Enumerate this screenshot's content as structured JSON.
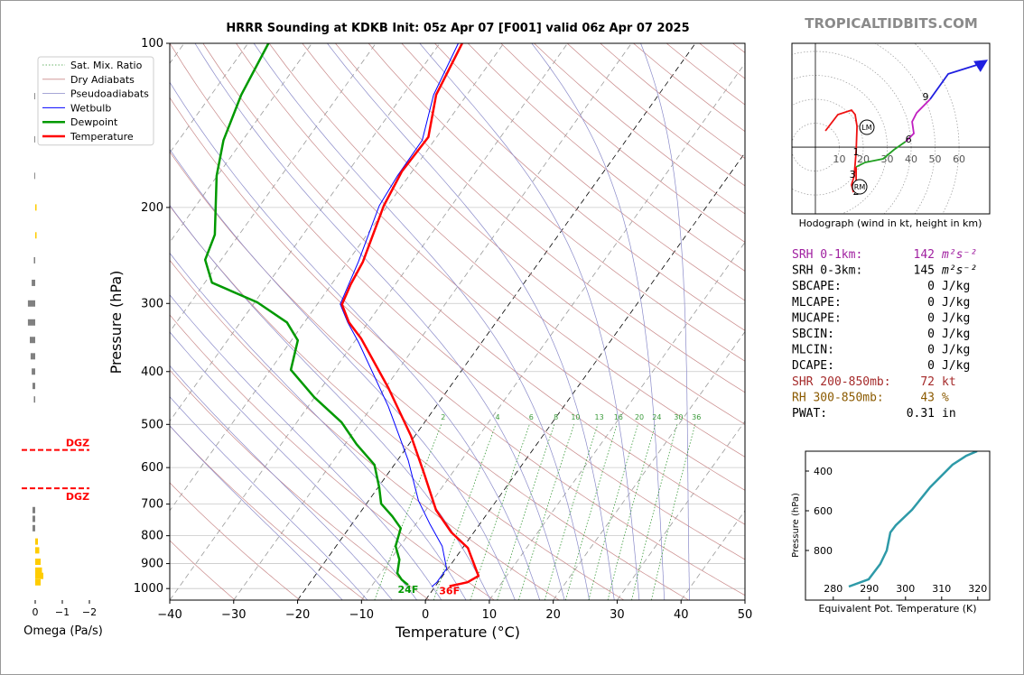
{
  "brand": "TROPICALTIDBITS.COM",
  "chart_data": [
    {
      "type": "skewt",
      "title": "HRRR Sounding at KDKB Init: 05z Apr 07 [F001] valid 06z Apr 07 2025",
      "xlabel": "Temperature (°C)",
      "ylabel": "Pressure (hPa)",
      "xlim": [
        -40,
        50
      ],
      "xticks": [
        {
          "value": -40,
          "label": "−40"
        },
        {
          "value": -30,
          "label": "−30"
        },
        {
          "value": -20,
          "label": "−20"
        },
        {
          "value": -10,
          "label": "−10"
        },
        0,
        10,
        20,
        30,
        40,
        50
      ],
      "ylim": [
        1050,
        100
      ],
      "log_y": true,
      "yticks": [
        100,
        200,
        300,
        400,
        500,
        600,
        700,
        800,
        900,
        1000
      ],
      "grid": true,
      "legend": "upper left",
      "reference_lines": [
        {
          "name": "Sat. Mix. Ratio",
          "color": "#3a9a3a",
          "style": "dotted"
        },
        {
          "name": "Dry Adiabats",
          "color": "#c98a8a",
          "style": "solid"
        },
        {
          "name": "Pseudoadiabats",
          "color": "#8a8ac9",
          "style": "solid"
        }
      ],
      "mix_ratios": [
        2,
        4,
        6,
        8,
        10,
        13,
        16,
        20,
        24,
        30,
        36
      ],
      "series": [
        {
          "name": "Wetbulb",
          "color": "#0000ff",
          "linewidth": 1,
          "pressure": [
            992,
            973.6,
            919.5,
            836,
            760,
            690,
            582,
            463,
            354.8,
            325,
            301,
            251.6,
            198.6,
            175,
            150.6,
            124.3,
            100
          ],
          "values": [
            -0.5,
            -0.2,
            -0.2,
            -3.4,
            -7.9,
            -12.2,
            -18.3,
            -27.5,
            -39.1,
            -43.2,
            -46.4,
            -48.3,
            -51.3,
            -51.8,
            -51.9,
            -55.2,
            -57.1
          ]
        },
        {
          "name": "Dewpoint",
          "color": "#009900",
          "linewidth": 2.5,
          "surface_label": "24F",
          "pressure": [
            985,
            963,
            937.4,
            885,
            836,
            775,
            737.6,
            699,
            653,
            593,
            543.6,
            495.5,
            445.6,
            397,
            350.6,
            325,
            298.5,
            274.7,
            249.5,
            224.4,
            175,
            150.6,
            124.3,
            100
          ],
          "values": [
            -4.4,
            -6,
            -7.4,
            -8.6,
            -10.7,
            -11.9,
            -14.5,
            -17.7,
            -19.8,
            -23.1,
            -28.2,
            -33,
            -40.1,
            -46.8,
            -49,
            -52.7,
            -59.6,
            -68.9,
            -72.5,
            -73.8,
            -80.1,
            -83,
            -85.3,
            -86.8
          ]
        },
        {
          "name": "Temperature",
          "color": "#ff0000",
          "linewidth": 2.5,
          "surface_label": "36F",
          "pressure": [
            990,
            973.6,
            948,
            885,
            842,
            789,
            718,
            616,
            525,
            428.7,
            347.9,
            325,
            301.3,
            276.6,
            251.6,
            198.6,
            171.8,
            148.6,
            124.3,
            100
          ],
          "values": [
            2.2,
            4.6,
            5.6,
            2.8,
            0.8,
            -3.5,
            -8.4,
            -14.3,
            -20.6,
            -29.5,
            -39.3,
            -43.0,
            -46.1,
            -47.0,
            -47.6,
            -50.6,
            -51.6,
            -51.3,
            -54.8,
            -56.5
          ]
        }
      ]
    },
    {
      "type": "hbar",
      "xlabel": "Omega (Pa/s)",
      "xlim": [
        0.5,
        -2
      ],
      "xticks": [
        0,
        {
          "value": -1,
          "label": "−1"
        },
        {
          "value": -2,
          "label": "−2"
        }
      ],
      "pos_color": "#808080",
      "neg_color": "#ffcc00",
      "pressure": [
        125,
        150,
        175,
        200,
        225,
        250,
        275,
        300,
        325,
        350,
        375,
        400,
        425,
        450,
        718,
        745,
        775,
        820,
        851,
        893,
        927,
        948,
        974
      ],
      "values": [
        0.03,
        0.03,
        0.03,
        -0.05,
        -0.05,
        0.05,
        0.13,
        0.27,
        0.27,
        0.2,
        0.17,
        0.13,
        0.1,
        0.05,
        0.1,
        0.1,
        0.1,
        -0.1,
        -0.15,
        -0.2,
        -0.25,
        -0.3,
        -0.2
      ],
      "dgz": {
        "label": "DGZ",
        "pressures": [
          557,
          655
        ],
        "color": "#ff0000"
      }
    },
    {
      "type": "hodograph",
      "xlabel": "Hodograph (wind in kt, height in km)",
      "xlim": [
        -9.8,
        72.8
      ],
      "ylim": [
        -27.9,
        43.4
      ],
      "rings": [
        10,
        20,
        30,
        40,
        50,
        60
      ],
      "series": [
        {
          "color": "#ee1111",
          "u": [
            4.2,
            9.4,
            15.1,
            16.6,
            17.4,
            17.0,
            16.2,
            15.1,
            15.8,
            17.0,
            17.0,
            17.0
          ],
          "v": [
            6.8,
            13.6,
            15.5,
            13.6,
            8.7,
            -1.9,
            -12.1,
            -15.8,
            -18.5,
            -17.7,
            -12.1,
            -8.3
          ]
        },
        {
          "color": "#22a022",
          "u": [
            17.0,
            20.8,
            28.3,
            32.8,
            37.7
          ],
          "v": [
            -8.3,
            -6.4,
            -4.9,
            -1.1,
            2.3
          ]
        },
        {
          "color": "#c01ec0",
          "u": [
            37.7,
            41.1,
            40.4,
            42.3,
            47.9
          ],
          "v": [
            2.3,
            5.7,
            10.6,
            14.3,
            20.0
          ]
        },
        {
          "color": "#1f1fe0",
          "u": [
            47.9,
            55.5,
            69.8,
            70.9
          ],
          "v": [
            20.0,
            30.6,
            35.1,
            35.8
          ]
        }
      ],
      "height_labels": [
        {
          "height": 1,
          "u": 17.0,
          "v": -1.9
        },
        {
          "height": 2,
          "u": 17.0,
          "v": -18.5
        },
        {
          "height": 3,
          "u": 15.5,
          "v": -11.3
        },
        {
          "height": 6,
          "u": 38.9,
          "v": 3.4
        },
        {
          "height": 9,
          "u": 46.0,
          "v": 21.1
        }
      ],
      "storm_motion": [
        {
          "label": "LM",
          "u": 21.5,
          "v": 8.3
        },
        {
          "label": "RM",
          "u": 18.5,
          "v": -16.6
        }
      ]
    },
    {
      "type": "line",
      "xlabel": "Equivalent Pot. Temperature (K)",
      "ylabel": "Pressure (hPa)",
      "xlim": [
        272.3,
        323.3
      ],
      "xticks": [
        280,
        290,
        300,
        310,
        320
      ],
      "ylim": [
        1050,
        300
      ],
      "yticks": [
        400,
        600,
        800
      ],
      "color": "#2e9aa8",
      "x": [
        284.3,
        289.8,
        293,
        294.8,
        295.8,
        297.3,
        301.8,
        306.8,
        313,
        316.8,
        319.8
      ],
      "values": [
        982,
        945,
        868,
        800,
        709,
        673,
        595,
        482,
        368,
        323,
        300
      ]
    }
  ],
  "parameters": [
    {
      "label": "SRH 0-1km:",
      "value": 142,
      "unit": "m²s⁻²",
      "color": "#a020a0"
    },
    {
      "label": "SRH 0-3km:",
      "value": 145,
      "unit": "m²s⁻²",
      "color": "#000000"
    },
    {
      "label": "SBCAPE:",
      "value": 0,
      "unit": "J/kg",
      "color": "#000000"
    },
    {
      "label": "MLCAPE:",
      "value": 0,
      "unit": "J/kg",
      "color": "#000000"
    },
    {
      "label": "MUCAPE:",
      "value": 0,
      "unit": "J/kg",
      "color": "#000000"
    },
    {
      "label": "SBCIN:",
      "value": 0,
      "unit": "J/kg",
      "color": "#000000"
    },
    {
      "label": "MLCIN:",
      "value": 0,
      "unit": "J/kg",
      "color": "#000000"
    },
    {
      "label": "DCAPE:",
      "value": 0,
      "unit": "J/kg",
      "color": "#000000"
    },
    {
      "label": "SHR 200-850mb:",
      "value": 72,
      "unit": "kt",
      "color": "#a52a2a"
    },
    {
      "label": "RH 300-850mb:",
      "value": 43,
      "unit": "%",
      "color": "#8b5a00"
    },
    {
      "label": "PWAT:",
      "value": 0.31,
      "unit": "in",
      "color": "#000000"
    }
  ]
}
